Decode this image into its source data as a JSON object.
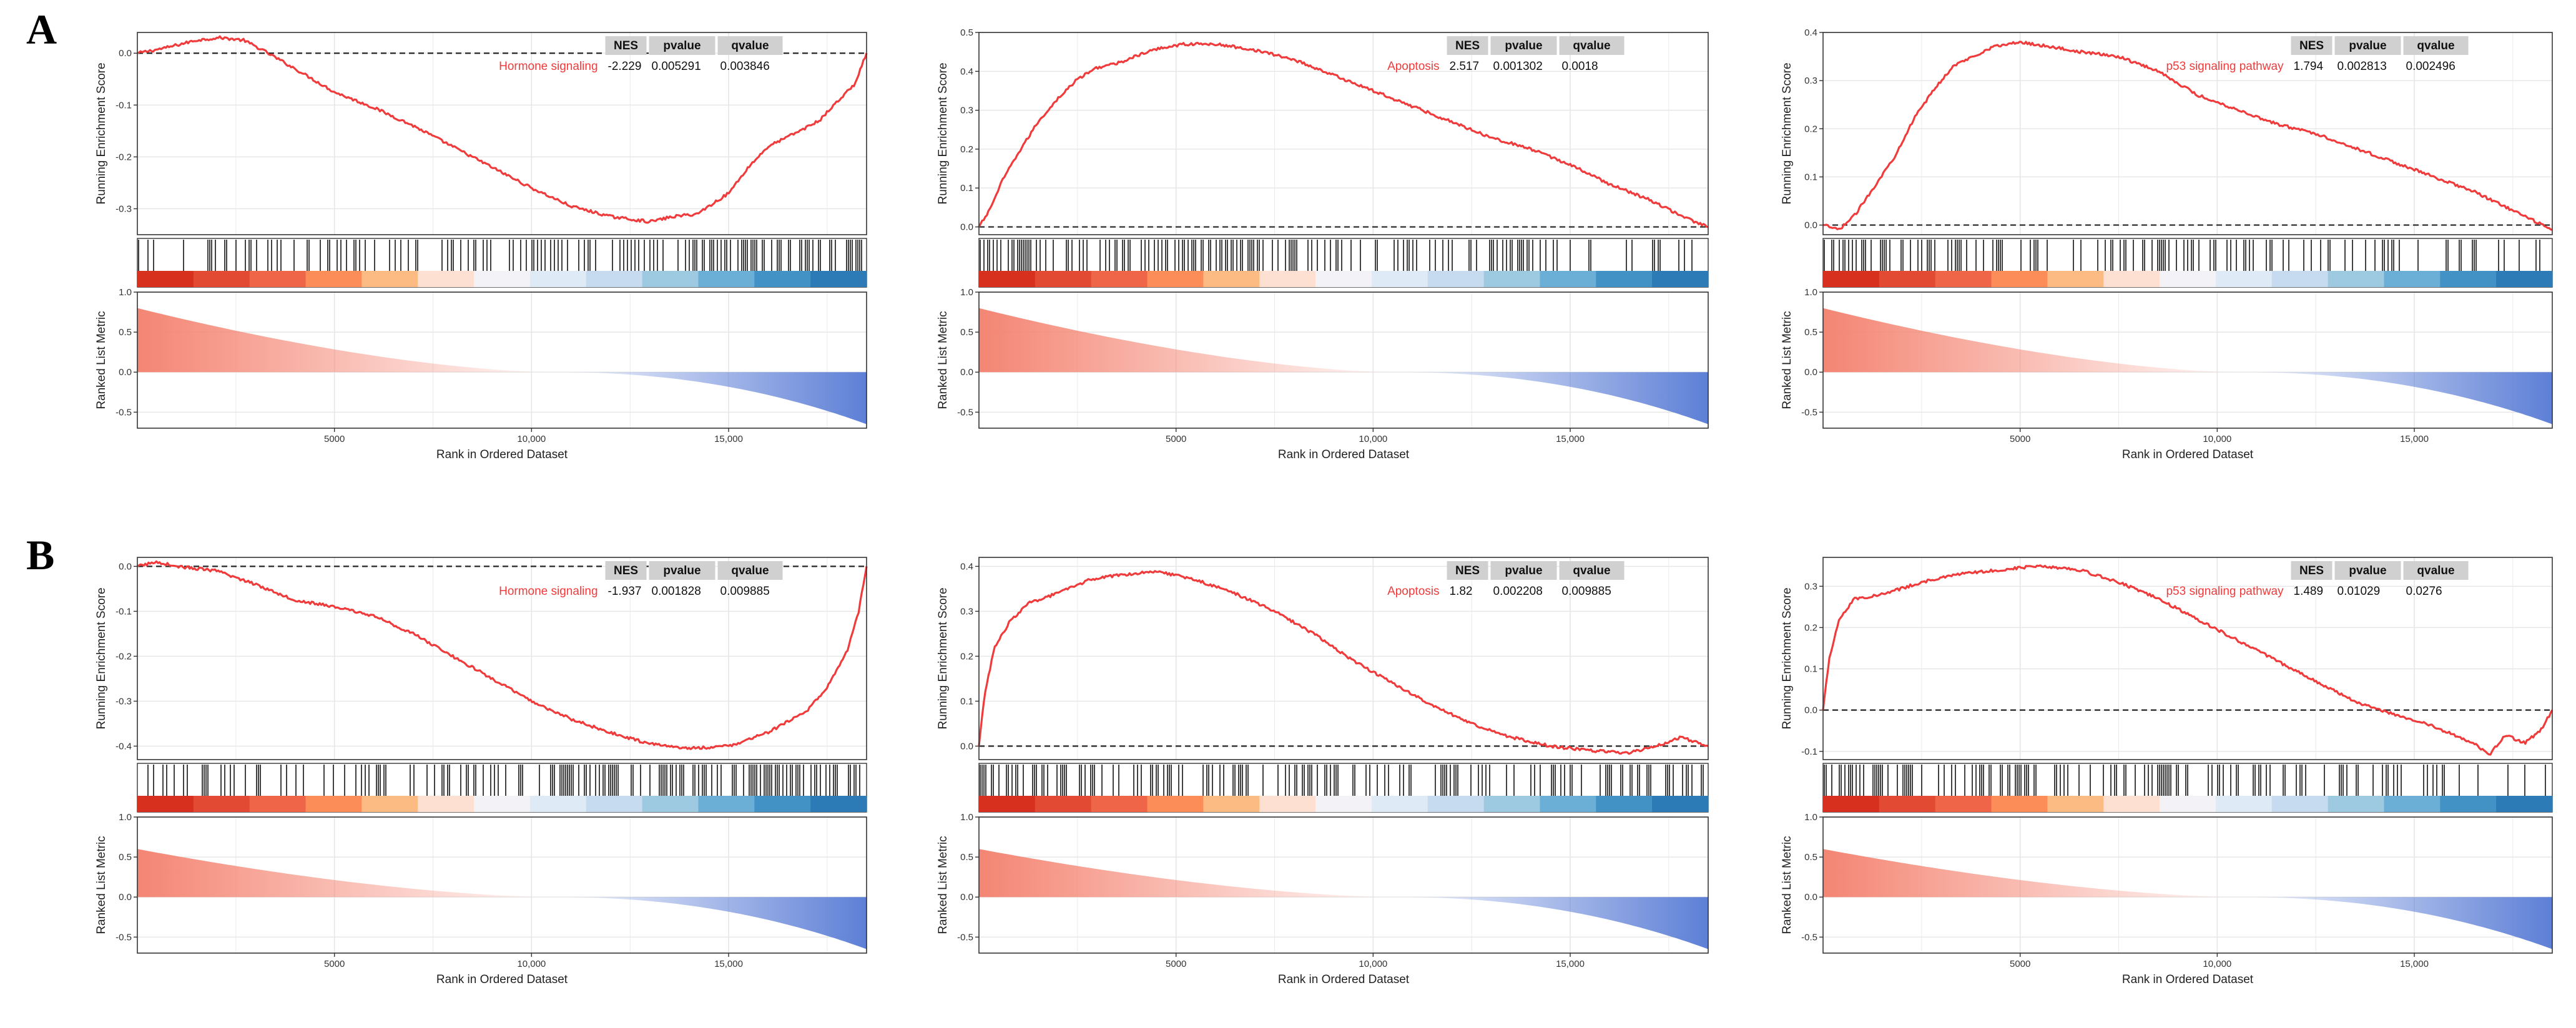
{
  "panel_labels": [
    "A",
    "B"
  ],
  "chart_data": [
    {
      "type": "line",
      "panel": "A",
      "pathway": "Hormone signaling",
      "table": {
        "headers": [
          "NES",
          "pvalue",
          "qvalue"
        ],
        "values": [
          "-2.229",
          "0.005291",
          "0.003846"
        ]
      },
      "es_ylim": [
        -0.35,
        0.04
      ],
      "es_yticks": [
        0.0,
        -0.1,
        -0.2,
        -0.3
      ],
      "es_tick_labels": [
        "0.0",
        "-0.1",
        "-0.2",
        "-0.3"
      ],
      "es_curve": [
        [
          0,
          0.0
        ],
        [
          700,
          0.01
        ],
        [
          1500,
          0.025
        ],
        [
          2100,
          0.03
        ],
        [
          2700,
          0.025
        ],
        [
          3200,
          0.005
        ],
        [
          4000,
          -0.03
        ],
        [
          5000,
          -0.075
        ],
        [
          6000,
          -0.105
        ],
        [
          7000,
          -0.14
        ],
        [
          8000,
          -0.18
        ],
        [
          9000,
          -0.22
        ],
        [
          10000,
          -0.26
        ],
        [
          11000,
          -0.295
        ],
        [
          12000,
          -0.315
        ],
        [
          13000,
          -0.325
        ],
        [
          13600,
          -0.315
        ],
        [
          14200,
          -0.31
        ],
        [
          15000,
          -0.27
        ],
        [
          15500,
          -0.22
        ],
        [
          16000,
          -0.18
        ],
        [
          16800,
          -0.15
        ],
        [
          17300,
          -0.13
        ],
        [
          17800,
          -0.09
        ],
        [
          18200,
          -0.06
        ],
        [
          18500,
          0.0
        ]
      ],
      "hit_density": [
        0.35,
        0.95
      ],
      "heat_colors": [
        "#d7301f",
        "#e34a33",
        "#ef6548",
        "#fc8d59",
        "#fdbb84",
        "#fee0d2",
        "#f2f2f7",
        "#deebf7",
        "#c6dbef",
        "#9ecae1",
        "#6baed6",
        "#4292c6",
        "#2c7bb6"
      ],
      "rank_xticks": [
        5000,
        10000,
        15000
      ],
      "rank_tick_labels": [
        "5000",
        "10,000",
        "15,000"
      ],
      "metric_ylim": [
        -0.7,
        1.0
      ],
      "metric_yticks": [
        1.0,
        0.5,
        0.0,
        -0.5
      ],
      "metric_tick_labels": [
        "1.0",
        "0.5",
        "0.0",
        "-0.5"
      ],
      "metric_range": [
        0.8,
        -0.65
      ],
      "ylabel_es": "Running Enrichment Score",
      "ylabel_metric": "Ranked List Metric",
      "xlabel": "Rank in Ordered Dataset"
    },
    {
      "type": "line",
      "panel": "A",
      "pathway": "Apoptosis",
      "table": {
        "headers": [
          "NES",
          "pvalue",
          "qvalue"
        ],
        "values": [
          "2.517",
          "0.001302",
          "0.0018"
        ]
      },
      "es_ylim": [
        -0.02,
        0.5
      ],
      "es_yticks": [
        0.0,
        0.1,
        0.2,
        0.3,
        0.4,
        0.5
      ],
      "es_tick_labels": [
        "0.0",
        "0.1",
        "0.2",
        "0.3",
        "0.4",
        "0.5"
      ],
      "es_curve": [
        [
          0,
          0.0
        ],
        [
          250,
          0.04
        ],
        [
          600,
          0.12
        ],
        [
          1000,
          0.19
        ],
        [
          1500,
          0.27
        ],
        [
          2000,
          0.33
        ],
        [
          2500,
          0.38
        ],
        [
          3000,
          0.41
        ],
        [
          3500,
          0.42
        ],
        [
          4000,
          0.44
        ],
        [
          4600,
          0.46
        ],
        [
          5200,
          0.47
        ],
        [
          6000,
          0.47
        ],
        [
          7000,
          0.455
        ],
        [
          8000,
          0.43
        ],
        [
          9000,
          0.39
        ],
        [
          10000,
          0.35
        ],
        [
          11000,
          0.31
        ],
        [
          12000,
          0.27
        ],
        [
          13000,
          0.23
        ],
        [
          14000,
          0.2
        ],
        [
          15000,
          0.16
        ],
        [
          16000,
          0.11
        ],
        [
          17000,
          0.07
        ],
        [
          18000,
          0.02
        ],
        [
          18500,
          0.0
        ]
      ],
      "hit_density": [
        0.95,
        0.35
      ],
      "heat_colors": [
        "#d7301f",
        "#e34a33",
        "#ef6548",
        "#fc8d59",
        "#fdbb84",
        "#fee0d2",
        "#f2f2f7",
        "#deebf7",
        "#c6dbef",
        "#9ecae1",
        "#6baed6",
        "#4292c6",
        "#2c7bb6"
      ],
      "rank_xticks": [
        5000,
        10000,
        15000
      ],
      "rank_tick_labels": [
        "5000",
        "10,000",
        "15,000"
      ],
      "metric_ylim": [
        -0.7,
        1.0
      ],
      "metric_yticks": [
        1.0,
        0.5,
        0.0,
        -0.5
      ],
      "metric_tick_labels": [
        "1.0",
        "0.5",
        "0.0",
        "-0.5"
      ],
      "metric_range": [
        0.8,
        -0.65
      ],
      "ylabel_es": "Running Enrichment Score",
      "ylabel_metric": "Ranked List Metric",
      "xlabel": "Rank in Ordered Dataset"
    },
    {
      "type": "line",
      "panel": "A",
      "pathway": "p53 signaling pathway",
      "table": {
        "headers": [
          "NES",
          "pvalue",
          "qvalue"
        ],
        "values": [
          "1.794",
          "0.002813",
          "0.002496"
        ]
      },
      "es_ylim": [
        -0.02,
        0.4
      ],
      "es_yticks": [
        0.0,
        0.1,
        0.2,
        0.3,
        0.4
      ],
      "es_tick_labels": [
        "0.0",
        "0.1",
        "0.2",
        "0.3",
        "0.4"
      ],
      "es_curve": [
        [
          0,
          0.0
        ],
        [
          400,
          -0.01
        ],
        [
          800,
          0.02
        ],
        [
          1300,
          0.08
        ],
        [
          1800,
          0.14
        ],
        [
          2300,
          0.22
        ],
        [
          2800,
          0.28
        ],
        [
          3300,
          0.33
        ],
        [
          3800,
          0.35
        ],
        [
          4300,
          0.37
        ],
        [
          5000,
          0.38
        ],
        [
          5800,
          0.37
        ],
        [
          6500,
          0.36
        ],
        [
          7500,
          0.35
        ],
        [
          8500,
          0.32
        ],
        [
          9500,
          0.27
        ],
        [
          10500,
          0.24
        ],
        [
          11500,
          0.21
        ],
        [
          12500,
          0.19
        ],
        [
          13500,
          0.16
        ],
        [
          14500,
          0.13
        ],
        [
          15500,
          0.1
        ],
        [
          16500,
          0.07
        ],
        [
          17500,
          0.03
        ],
        [
          18500,
          -0.01
        ]
      ],
      "hit_density": [
        0.75,
        0.25
      ],
      "heat_colors": [
        "#d7301f",
        "#e34a33",
        "#ef6548",
        "#fc8d59",
        "#fdbb84",
        "#fee0d2",
        "#f2f2f7",
        "#deebf7",
        "#c6dbef",
        "#9ecae1",
        "#6baed6",
        "#4292c6",
        "#2c7bb6"
      ],
      "rank_xticks": [
        5000,
        10000,
        15000
      ],
      "rank_tick_labels": [
        "5000",
        "10,000",
        "15,000"
      ],
      "metric_ylim": [
        -0.7,
        1.0
      ],
      "metric_yticks": [
        1.0,
        0.5,
        0.0,
        -0.5
      ],
      "metric_tick_labels": [
        "1.0",
        "0.5",
        "0.0",
        "-0.5"
      ],
      "metric_range": [
        0.8,
        -0.65
      ],
      "ylabel_es": "Running Enrichment Score",
      "ylabel_metric": "Ranked List Metric",
      "xlabel": "Rank in Ordered Dataset"
    },
    {
      "type": "line",
      "panel": "B",
      "pathway": "Hormone signaling",
      "table": {
        "headers": [
          "NES",
          "pvalue",
          "qvalue"
        ],
        "values": [
          "-1.937",
          "0.001828",
          "0.009885"
        ]
      },
      "es_ylim": [
        -0.43,
        0.02
      ],
      "es_yticks": [
        0.0,
        -0.1,
        -0.2,
        -0.3,
        -0.4
      ],
      "es_tick_labels": [
        "0.0",
        "-0.1",
        "-0.2",
        "-0.3",
        "-0.4"
      ],
      "es_curve": [
        [
          0,
          0.0
        ],
        [
          500,
          0.01
        ],
        [
          1000,
          0.0
        ],
        [
          2000,
          -0.01
        ],
        [
          3000,
          -0.04
        ],
        [
          4000,
          -0.075
        ],
        [
          5000,
          -0.09
        ],
        [
          6000,
          -0.11
        ],
        [
          7000,
          -0.15
        ],
        [
          8000,
          -0.2
        ],
        [
          9000,
          -0.25
        ],
        [
          10000,
          -0.3
        ],
        [
          11000,
          -0.34
        ],
        [
          12000,
          -0.37
        ],
        [
          13000,
          -0.395
        ],
        [
          14000,
          -0.405
        ],
        [
          15000,
          -0.4
        ],
        [
          16000,
          -0.37
        ],
        [
          17000,
          -0.32
        ],
        [
          17500,
          -0.27
        ],
        [
          18000,
          -0.19
        ],
        [
          18300,
          -0.1
        ],
        [
          18500,
          0.0
        ]
      ],
      "hit_density": [
        0.45,
        0.95
      ],
      "heat_colors": [
        "#d7301f",
        "#e34a33",
        "#ef6548",
        "#fc8d59",
        "#fdbb84",
        "#fee0d2",
        "#f2f2f7",
        "#deebf7",
        "#c6dbef",
        "#9ecae1",
        "#6baed6",
        "#4292c6",
        "#2c7bb6"
      ],
      "rank_xticks": [
        5000,
        10000,
        15000
      ],
      "rank_tick_labels": [
        "5000",
        "10,000",
        "15,000"
      ],
      "metric_ylim": [
        -0.7,
        1.0
      ],
      "metric_yticks": [
        1.0,
        0.5,
        0.0,
        -0.5
      ],
      "metric_tick_labels": [
        "1.0",
        "0.5",
        "0.0",
        "-0.5"
      ],
      "metric_range": [
        0.6,
        -0.65
      ],
      "ylabel_es": "Running Enrichment Score",
      "ylabel_metric": "Ranked List Metric",
      "xlabel": "Rank in Ordered Dataset"
    },
    {
      "type": "line",
      "panel": "B",
      "pathway": "Apoptosis",
      "table": {
        "headers": [
          "NES",
          "pvalue",
          "qvalue"
        ],
        "values": [
          "1.82",
          "0.002208",
          "0.009885"
        ]
      },
      "es_ylim": [
        -0.03,
        0.42
      ],
      "es_yticks": [
        0.0,
        0.1,
        0.2,
        0.3,
        0.4
      ],
      "es_tick_labels": [
        "0.0",
        "0.1",
        "0.2",
        "0.3",
        "0.4"
      ],
      "es_curve": [
        [
          0,
          0.0
        ],
        [
          150,
          0.12
        ],
        [
          400,
          0.22
        ],
        [
          800,
          0.28
        ],
        [
          1300,
          0.32
        ],
        [
          2000,
          0.34
        ],
        [
          2800,
          0.37
        ],
        [
          3500,
          0.38
        ],
        [
          4500,
          0.39
        ],
        [
          5500,
          0.37
        ],
        [
          6500,
          0.34
        ],
        [
          7500,
          0.3
        ],
        [
          8500,
          0.25
        ],
        [
          9500,
          0.19
        ],
        [
          10500,
          0.14
        ],
        [
          11500,
          0.09
        ],
        [
          12500,
          0.05
        ],
        [
          13500,
          0.02
        ],
        [
          14500,
          0.0
        ],
        [
          15500,
          -0.01
        ],
        [
          16500,
          -0.015
        ],
        [
          17200,
          0.0
        ],
        [
          17800,
          0.02
        ],
        [
          18500,
          0.0
        ]
      ],
      "hit_density": [
        0.9,
        0.45
      ],
      "heat_colors": [
        "#d7301f",
        "#e34a33",
        "#ef6548",
        "#fc8d59",
        "#fdbb84",
        "#fee0d2",
        "#f2f2f7",
        "#deebf7",
        "#c6dbef",
        "#9ecae1",
        "#6baed6",
        "#4292c6",
        "#2c7bb6"
      ],
      "rank_xticks": [
        5000,
        10000,
        15000
      ],
      "rank_tick_labels": [
        "5000",
        "10,000",
        "15,000"
      ],
      "metric_ylim": [
        -0.7,
        1.0
      ],
      "metric_yticks": [
        1.0,
        0.5,
        0.0,
        -0.5
      ],
      "metric_tick_labels": [
        "1.0",
        "0.5",
        "0.0",
        "-0.5"
      ],
      "metric_range": [
        0.6,
        -0.65
      ],
      "ylabel_es": "Running Enrichment Score",
      "ylabel_metric": "Ranked List Metric",
      "xlabel": "Rank in Ordered Dataset"
    },
    {
      "type": "line",
      "panel": "B",
      "pathway": "p53 signaling pathway",
      "table": {
        "headers": [
          "NES",
          "pvalue",
          "qvalue"
        ],
        "values": [
          "1.489",
          "0.01029",
          "0.0276"
        ]
      },
      "es_ylim": [
        -0.12,
        0.37
      ],
      "es_yticks": [
        0.3,
        0.2,
        0.1,
        0.0,
        -0.1
      ],
      "es_tick_labels": [
        "0.3",
        "0.2",
        "0.1",
        "0.0",
        "-0.1"
      ],
      "es_curve": [
        [
          0,
          0.0
        ],
        [
          150,
          0.12
        ],
        [
          400,
          0.22
        ],
        [
          800,
          0.27
        ],
        [
          1500,
          0.28
        ],
        [
          2500,
          0.31
        ],
        [
          3500,
          0.33
        ],
        [
          4500,
          0.34
        ],
        [
          5500,
          0.35
        ],
        [
          6500,
          0.34
        ],
        [
          7500,
          0.31
        ],
        [
          8500,
          0.27
        ],
        [
          9500,
          0.22
        ],
        [
          10500,
          0.17
        ],
        [
          11500,
          0.12
        ],
        [
          12500,
          0.07
        ],
        [
          13500,
          0.02
        ],
        [
          14500,
          -0.01
        ],
        [
          15500,
          -0.04
        ],
        [
          16500,
          -0.08
        ],
        [
          16900,
          -0.11
        ],
        [
          17300,
          -0.06
        ],
        [
          17800,
          -0.08
        ],
        [
          18200,
          -0.05
        ],
        [
          18500,
          0.0
        ]
      ],
      "hit_density": [
        0.85,
        0.3
      ],
      "heat_colors": [
        "#d7301f",
        "#e34a33",
        "#ef6548",
        "#fc8d59",
        "#fdbb84",
        "#fee0d2",
        "#f2f2f7",
        "#deebf7",
        "#c6dbef",
        "#9ecae1",
        "#6baed6",
        "#4292c6",
        "#2c7bb6"
      ],
      "rank_xticks": [
        5000,
        10000,
        15000
      ],
      "rank_tick_labels": [
        "5000",
        "10,000",
        "15,000"
      ],
      "metric_ylim": [
        -0.7,
        1.0
      ],
      "metric_yticks": [
        1.0,
        0.5,
        0.0,
        -0.5
      ],
      "metric_tick_labels": [
        "1.0",
        "0.5",
        "0.0",
        "-0.5"
      ],
      "metric_range": [
        0.6,
        -0.65
      ],
      "ylabel_es": "Running Enrichment Score",
      "ylabel_metric": "Ranked List Metric",
      "xlabel": "Rank in Ordered Dataset"
    }
  ],
  "colors": {
    "es_line": "#ef3b3b",
    "metric_pos": "#f48573",
    "metric_neg": "#5d7fd6",
    "table_header_bg": "#d0d0d0",
    "grid": "#e6e6e6"
  }
}
